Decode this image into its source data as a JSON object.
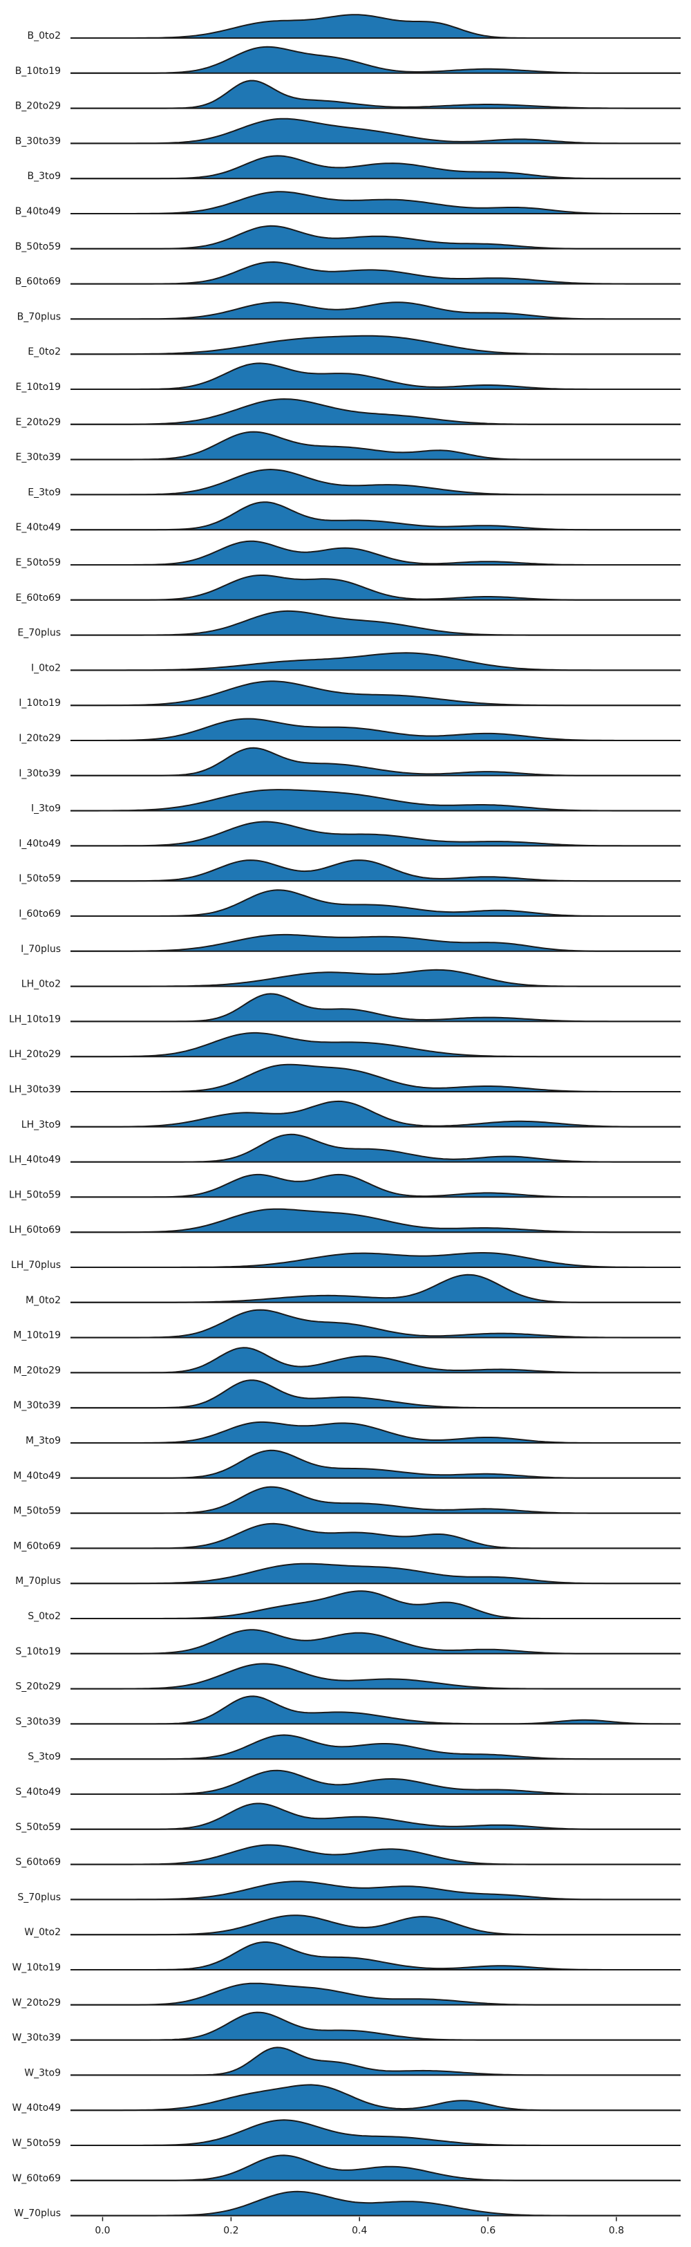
{
  "chart_data": {
    "type": "area",
    "title": "",
    "xlabel": "",
    "ylabel": "",
    "xlim": [
      -0.05,
      0.9
    ],
    "x_ticks": [
      0.0,
      0.2,
      0.4,
      0.6,
      0.8
    ],
    "x_tick_labels": [
      "0.0",
      "0.2",
      "0.4",
      "0.6",
      "0.8"
    ],
    "grid": false,
    "legend": "none",
    "fill_color": "#1f77b4",
    "line_color": "#1a1a1a",
    "rows": [
      {
        "label": "B_0to2",
        "peaks": [
          [
            0.26,
            0.06,
            0.55
          ],
          [
            0.4,
            0.06,
            0.8
          ],
          [
            0.52,
            0.04,
            0.45
          ]
        ]
      },
      {
        "label": "B_10to19",
        "peaks": [
          [
            0.25,
            0.05,
            0.9
          ],
          [
            0.36,
            0.05,
            0.5
          ],
          [
            0.6,
            0.06,
            0.15
          ]
        ]
      },
      {
        "label": "B_20to29",
        "peaks": [
          [
            0.23,
            0.035,
            1.0
          ],
          [
            0.33,
            0.06,
            0.3
          ],
          [
            0.6,
            0.07,
            0.15
          ]
        ]
      },
      {
        "label": "B_30to39",
        "peaks": [
          [
            0.27,
            0.06,
            0.8
          ],
          [
            0.4,
            0.07,
            0.45
          ],
          [
            0.65,
            0.05,
            0.15
          ]
        ]
      },
      {
        "label": "B_3to9",
        "peaks": [
          [
            0.27,
            0.05,
            0.8
          ],
          [
            0.45,
            0.07,
            0.55
          ],
          [
            0.62,
            0.05,
            0.2
          ]
        ]
      },
      {
        "label": "B_40to49",
        "peaks": [
          [
            0.27,
            0.06,
            0.75
          ],
          [
            0.45,
            0.08,
            0.5
          ],
          [
            0.65,
            0.05,
            0.2
          ]
        ]
      },
      {
        "label": "B_50to59",
        "peaks": [
          [
            0.26,
            0.05,
            0.8
          ],
          [
            0.43,
            0.07,
            0.45
          ],
          [
            0.6,
            0.05,
            0.15
          ]
        ]
      },
      {
        "label": "B_60to69",
        "peaks": [
          [
            0.26,
            0.05,
            0.75
          ],
          [
            0.42,
            0.07,
            0.5
          ],
          [
            0.62,
            0.06,
            0.2
          ]
        ]
      },
      {
        "label": "B_70plus",
        "peaks": [
          [
            0.27,
            0.06,
            0.6
          ],
          [
            0.46,
            0.06,
            0.6
          ],
          [
            0.62,
            0.05,
            0.2
          ]
        ]
      },
      {
        "label": "E_0to2",
        "peaks": [
          [
            0.3,
            0.08,
            0.45
          ],
          [
            0.45,
            0.08,
            0.55
          ]
        ]
      },
      {
        "label": "E_10to19",
        "peaks": [
          [
            0.24,
            0.05,
            0.9
          ],
          [
            0.38,
            0.06,
            0.55
          ],
          [
            0.6,
            0.05,
            0.15
          ]
        ]
      },
      {
        "label": "E_20to29",
        "peaks": [
          [
            0.28,
            0.07,
            0.9
          ],
          [
            0.45,
            0.07,
            0.3
          ]
        ]
      },
      {
        "label": "E_30to39",
        "peaks": [
          [
            0.23,
            0.05,
            0.95
          ],
          [
            0.37,
            0.07,
            0.45
          ],
          [
            0.53,
            0.04,
            0.3
          ]
        ]
      },
      {
        "label": "E_3to9",
        "peaks": [
          [
            0.26,
            0.06,
            0.9
          ],
          [
            0.45,
            0.07,
            0.35
          ]
        ]
      },
      {
        "label": "E_40to49",
        "peaks": [
          [
            0.25,
            0.045,
            1.0
          ],
          [
            0.4,
            0.07,
            0.35
          ],
          [
            0.6,
            0.05,
            0.15
          ]
        ]
      },
      {
        "label": "E_50to59",
        "peaks": [
          [
            0.23,
            0.05,
            0.85
          ],
          [
            0.38,
            0.05,
            0.6
          ],
          [
            0.6,
            0.05,
            0.12
          ]
        ]
      },
      {
        "label": "E_60to69",
        "peaks": [
          [
            0.24,
            0.05,
            0.85
          ],
          [
            0.36,
            0.05,
            0.7
          ],
          [
            0.6,
            0.05,
            0.12
          ]
        ]
      },
      {
        "label": "E_70plus",
        "peaks": [
          [
            0.28,
            0.06,
            0.8
          ],
          [
            0.42,
            0.07,
            0.45
          ]
        ]
      },
      {
        "label": "I_0to2",
        "peaks": [
          [
            0.3,
            0.08,
            0.3
          ],
          [
            0.48,
            0.08,
            0.6
          ]
        ]
      },
      {
        "label": "I_10to19",
        "peaks": [
          [
            0.26,
            0.07,
            0.85
          ],
          [
            0.45,
            0.08,
            0.35
          ]
        ]
      },
      {
        "label": "I_20to29",
        "peaks": [
          [
            0.22,
            0.06,
            0.75
          ],
          [
            0.38,
            0.07,
            0.45
          ],
          [
            0.6,
            0.06,
            0.25
          ]
        ]
      },
      {
        "label": "I_30to39",
        "peaks": [
          [
            0.23,
            0.04,
            0.95
          ],
          [
            0.35,
            0.07,
            0.45
          ],
          [
            0.6,
            0.05,
            0.15
          ]
        ]
      },
      {
        "label": "I_3to9",
        "peaks": [
          [
            0.24,
            0.07,
            0.6
          ],
          [
            0.38,
            0.08,
            0.55
          ],
          [
            0.6,
            0.06,
            0.2
          ]
        ]
      },
      {
        "label": "I_40to49",
        "peaks": [
          [
            0.25,
            0.06,
            0.85
          ],
          [
            0.42,
            0.07,
            0.4
          ],
          [
            0.62,
            0.06,
            0.15
          ]
        ]
      },
      {
        "label": "I_50to59",
        "peaks": [
          [
            0.23,
            0.05,
            0.75
          ],
          [
            0.4,
            0.05,
            0.75
          ],
          [
            0.6,
            0.05,
            0.15
          ]
        ]
      },
      {
        "label": "I_60to69",
        "peaks": [
          [
            0.27,
            0.05,
            0.9
          ],
          [
            0.42,
            0.07,
            0.4
          ],
          [
            0.62,
            0.05,
            0.2
          ]
        ]
      },
      {
        "label": "I_70plus",
        "peaks": [
          [
            0.27,
            0.07,
            0.55
          ],
          [
            0.45,
            0.08,
            0.5
          ],
          [
            0.62,
            0.05,
            0.25
          ]
        ]
      },
      {
        "label": "LH_0to2",
        "peaks": [
          [
            0.35,
            0.08,
            0.5
          ],
          [
            0.53,
            0.06,
            0.55
          ]
        ]
      },
      {
        "label": "LH_10to19",
        "peaks": [
          [
            0.26,
            0.04,
            1.0
          ],
          [
            0.38,
            0.05,
            0.45
          ],
          [
            0.6,
            0.06,
            0.15
          ]
        ]
      },
      {
        "label": "LH_20to29",
        "peaks": [
          [
            0.23,
            0.06,
            0.8
          ],
          [
            0.4,
            0.08,
            0.5
          ]
        ]
      },
      {
        "label": "LH_30to39",
        "peaks": [
          [
            0.27,
            0.05,
            0.8
          ],
          [
            0.38,
            0.06,
            0.75
          ],
          [
            0.6,
            0.06,
            0.2
          ]
        ]
      },
      {
        "label": "LH_3to9",
        "peaks": [
          [
            0.22,
            0.06,
            0.5
          ],
          [
            0.37,
            0.05,
            0.9
          ],
          [
            0.65,
            0.06,
            0.2
          ]
        ]
      },
      {
        "label": "LH_40to49",
        "peaks": [
          [
            0.29,
            0.045,
            0.95
          ],
          [
            0.42,
            0.06,
            0.45
          ],
          [
            0.63,
            0.05,
            0.2
          ]
        ]
      },
      {
        "label": "LH_50to59",
        "peaks": [
          [
            0.24,
            0.045,
            0.8
          ],
          [
            0.37,
            0.045,
            0.8
          ],
          [
            0.6,
            0.05,
            0.15
          ]
        ]
      },
      {
        "label": "LH_60to69",
        "peaks": [
          [
            0.25,
            0.06,
            0.7
          ],
          [
            0.38,
            0.07,
            0.6
          ],
          [
            0.6,
            0.06,
            0.15
          ]
        ]
      },
      {
        "label": "LH_70plus",
        "peaks": [
          [
            0.4,
            0.08,
            0.5
          ],
          [
            0.6,
            0.07,
            0.5
          ]
        ]
      },
      {
        "label": "M_0to2",
        "peaks": [
          [
            0.35,
            0.08,
            0.25
          ],
          [
            0.57,
            0.05,
            1.0
          ]
        ]
      },
      {
        "label": "M_10to19",
        "peaks": [
          [
            0.24,
            0.05,
            0.95
          ],
          [
            0.37,
            0.06,
            0.5
          ],
          [
            0.62,
            0.06,
            0.15
          ]
        ]
      },
      {
        "label": "M_20to29",
        "peaks": [
          [
            0.22,
            0.04,
            0.9
          ],
          [
            0.41,
            0.06,
            0.6
          ],
          [
            0.62,
            0.05,
            0.12
          ]
        ]
      },
      {
        "label": "M_30to39",
        "peaks": [
          [
            0.23,
            0.04,
            1.0
          ],
          [
            0.38,
            0.07,
            0.4
          ]
        ]
      },
      {
        "label": "M_3to9",
        "peaks": [
          [
            0.24,
            0.05,
            0.7
          ],
          [
            0.38,
            0.06,
            0.7
          ],
          [
            0.6,
            0.05,
            0.2
          ]
        ]
      },
      {
        "label": "M_40to49",
        "peaks": [
          [
            0.26,
            0.045,
            1.0
          ],
          [
            0.4,
            0.07,
            0.35
          ],
          [
            0.6,
            0.05,
            0.15
          ]
        ]
      },
      {
        "label": "M_50to59",
        "peaks": [
          [
            0.26,
            0.045,
            0.9
          ],
          [
            0.4,
            0.07,
            0.35
          ],
          [
            0.6,
            0.05,
            0.15
          ]
        ]
      },
      {
        "label": "M_60to69",
        "peaks": [
          [
            0.26,
            0.05,
            0.85
          ],
          [
            0.4,
            0.06,
            0.55
          ],
          [
            0.53,
            0.04,
            0.45
          ]
        ]
      },
      {
        "label": "M_70plus",
        "peaks": [
          [
            0.3,
            0.07,
            0.65
          ],
          [
            0.45,
            0.07,
            0.5
          ],
          [
            0.62,
            0.05,
            0.2
          ]
        ]
      },
      {
        "label": "S_0to2",
        "peaks": [
          [
            0.3,
            0.06,
            0.45
          ],
          [
            0.41,
            0.05,
            0.9
          ],
          [
            0.54,
            0.04,
            0.55
          ]
        ]
      },
      {
        "label": "S_10to19",
        "peaks": [
          [
            0.23,
            0.05,
            0.85
          ],
          [
            0.4,
            0.06,
            0.75
          ],
          [
            0.6,
            0.05,
            0.15
          ]
        ]
      },
      {
        "label": "S_20to29",
        "peaks": [
          [
            0.25,
            0.06,
            0.9
          ],
          [
            0.45,
            0.07,
            0.35
          ]
        ]
      },
      {
        "label": "S_30to39",
        "peaks": [
          [
            0.23,
            0.04,
            1.0
          ],
          [
            0.37,
            0.07,
            0.45
          ],
          [
            0.75,
            0.04,
            0.15
          ]
        ]
      },
      {
        "label": "S_3to9",
        "peaks": [
          [
            0.28,
            0.05,
            0.85
          ],
          [
            0.44,
            0.06,
            0.55
          ],
          [
            0.6,
            0.05,
            0.15
          ]
        ]
      },
      {
        "label": "S_40to49",
        "peaks": [
          [
            0.27,
            0.05,
            0.85
          ],
          [
            0.45,
            0.06,
            0.55
          ],
          [
            0.62,
            0.05,
            0.15
          ]
        ]
      },
      {
        "label": "S_50to59",
        "peaks": [
          [
            0.24,
            0.045,
            0.9
          ],
          [
            0.4,
            0.07,
            0.45
          ],
          [
            0.62,
            0.05,
            0.15
          ]
        ]
      },
      {
        "label": "S_60to69",
        "peaks": [
          [
            0.26,
            0.06,
            0.7
          ],
          [
            0.45,
            0.06,
            0.55
          ]
        ]
      },
      {
        "label": "S_70plus",
        "peaks": [
          [
            0.3,
            0.07,
            0.65
          ],
          [
            0.48,
            0.06,
            0.45
          ],
          [
            0.62,
            0.05,
            0.15
          ]
        ]
      },
      {
        "label": "W_0to2",
        "peaks": [
          [
            0.3,
            0.06,
            0.7
          ],
          [
            0.5,
            0.05,
            0.65
          ]
        ]
      },
      {
        "label": "W_10to19",
        "peaks": [
          [
            0.25,
            0.045,
            1.0
          ],
          [
            0.38,
            0.06,
            0.45
          ],
          [
            0.62,
            0.05,
            0.15
          ]
        ]
      },
      {
        "label": "W_20to29",
        "peaks": [
          [
            0.22,
            0.05,
            0.65
          ],
          [
            0.33,
            0.06,
            0.55
          ],
          [
            0.5,
            0.06,
            0.2
          ]
        ]
      },
      {
        "label": "W_30to39",
        "peaks": [
          [
            0.24,
            0.045,
            1.0
          ],
          [
            0.38,
            0.06,
            0.35
          ]
        ]
      },
      {
        "label": "W_3to9",
        "peaks": [
          [
            0.27,
            0.035,
            1.2
          ],
          [
            0.36,
            0.04,
            0.55
          ],
          [
            0.5,
            0.06,
            0.2
          ]
        ]
      },
      {
        "label": "W_40to49",
        "peaks": [
          [
            0.24,
            0.06,
            0.55
          ],
          [
            0.34,
            0.05,
            0.75
          ],
          [
            0.56,
            0.04,
            0.35
          ]
        ]
      },
      {
        "label": "W_50to59",
        "peaks": [
          [
            0.28,
            0.06,
            0.9
          ],
          [
            0.45,
            0.07,
            0.3
          ]
        ]
      },
      {
        "label": "W_60to69",
        "peaks": [
          [
            0.28,
            0.05,
            0.9
          ],
          [
            0.45,
            0.06,
            0.5
          ]
        ]
      },
      {
        "label": "W_70plus",
        "peaks": [
          [
            0.3,
            0.06,
            0.85
          ],
          [
            0.48,
            0.07,
            0.5
          ]
        ]
      }
    ]
  }
}
